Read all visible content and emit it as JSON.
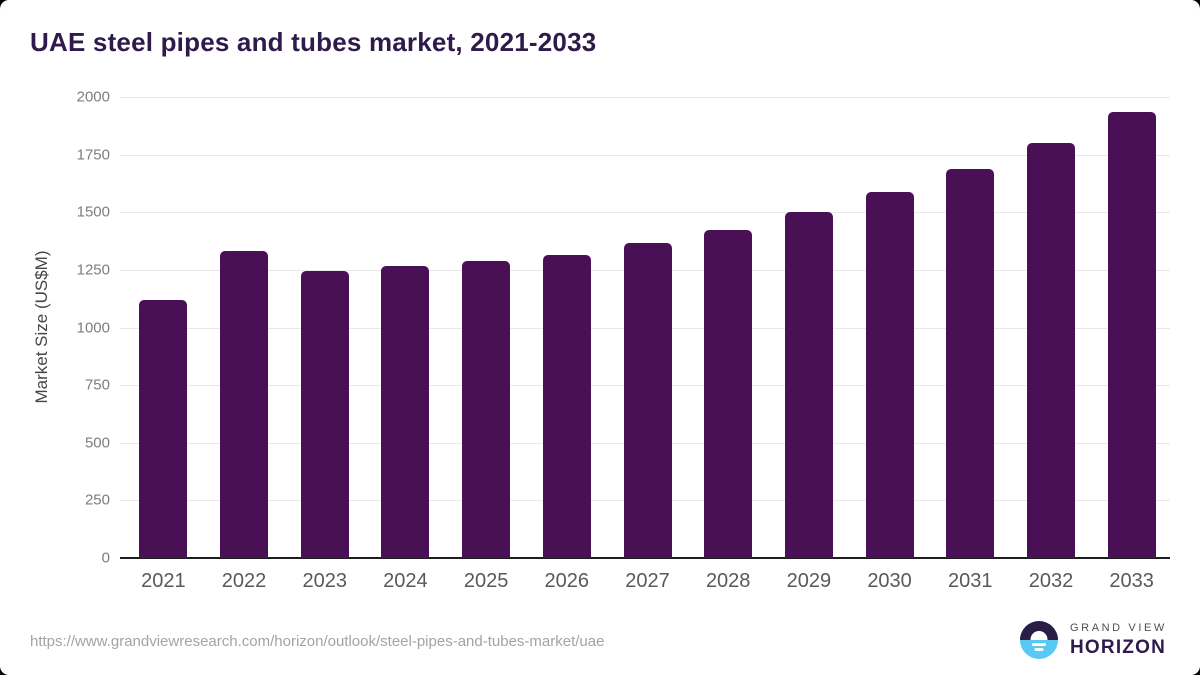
{
  "title": "UAE steel pipes and tubes market, 2021-2033",
  "footer": {
    "url": "https://www.grandviewresearch.com/horizon/outlook/steel-pipes-and-tubes-market/uae",
    "logo_line1": "GRAND VIEW",
    "logo_line2": "HORIZON"
  },
  "colors": {
    "bar": "#4a1056",
    "title": "#2f1a4c",
    "gridline": "#e8e8e8",
    "axis_line": "#1c1c1c",
    "logo_dark": "#2b1e44",
    "logo_blue": "#5ac8f5"
  },
  "chart_data": {
    "type": "bar",
    "title": "UAE steel pipes and tubes market, 2021-2033",
    "xlabel": "",
    "ylabel": "Market Size (US$M)",
    "ylim": [
      0,
      2000
    ],
    "yticks": [
      0,
      250,
      500,
      750,
      1000,
      1250,
      1500,
      1750,
      2000
    ],
    "grid": true,
    "legend": false,
    "bar_color": "#4a1056",
    "categories": [
      "2021",
      "2022",
      "2023",
      "2024",
      "2025",
      "2026",
      "2027",
      "2028",
      "2029",
      "2030",
      "2031",
      "2032",
      "2033"
    ],
    "values": [
      1118,
      1330,
      1247,
      1265,
      1288,
      1314,
      1368,
      1424,
      1500,
      1588,
      1688,
      1800,
      1933
    ]
  }
}
